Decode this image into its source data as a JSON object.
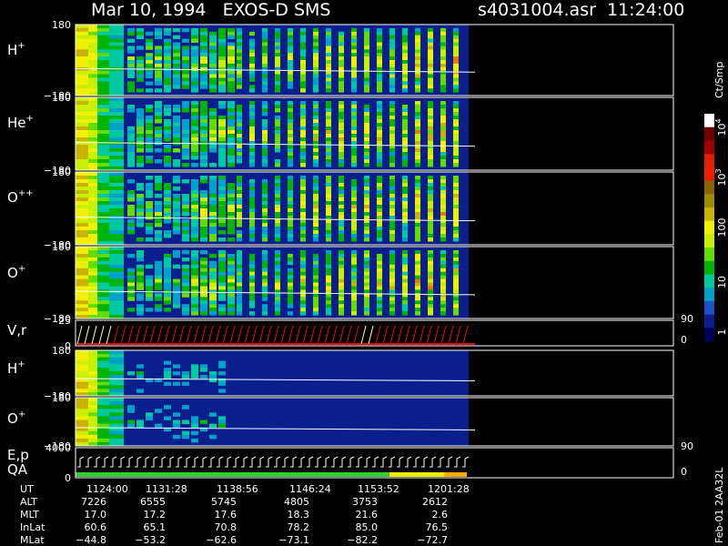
{
  "header": {
    "title": "Mar 10, 1994   EXOS-D SMS",
    "file": "s4031004.asr  11:24:00"
  },
  "panels": [
    {
      "label": "H",
      "sup": "+",
      "ticks": [
        "180",
        "−180"
      ]
    },
    {
      "label": "He",
      "sup": "+",
      "ticks": [
        "180",
        "−180"
      ]
    },
    {
      "label": "O",
      "sup": "++",
      "ticks": [
        "180",
        "−180"
      ]
    },
    {
      "label": "O",
      "sup": "+",
      "ticks": [
        "180",
        "−180"
      ]
    },
    {
      "label": "V,r",
      "ticks": [
        "25",
        "0"
      ],
      "right_ticks": [
        "90",
        "0"
      ]
    },
    {
      "label": "H",
      "sup": "+",
      "ticks": [
        "180",
        "−180"
      ]
    },
    {
      "label": "O",
      "sup": "+",
      "ticks": [
        "180",
        "−180"
      ]
    },
    {
      "label": "E,p",
      "label2": "QA",
      "ticks": [
        "4000",
        "0"
      ],
      "right_ticks": [
        "90",
        "0"
      ]
    }
  ],
  "colorbar": {
    "unit": "Ct/Smp",
    "ticks": [
      {
        "base": "10",
        "exp": "4"
      },
      {
        "base": "10",
        "exp": "3"
      },
      "100",
      "10",
      "1"
    ]
  },
  "footer": {
    "rows": [
      {
        "label": "UT",
        "values": [
          "1124:00",
          "1131:28",
          "1138:56",
          "1146:24",
          "1153:52",
          "1201:28"
        ]
      },
      {
        "label": "ALT",
        "values": [
          "7226",
          "6555",
          "5745",
          "4805",
          "3753",
          "2612"
        ]
      },
      {
        "label": "MLT",
        "values": [
          "17.0",
          "17.2",
          "17.6",
          "18.3",
          "21.6",
          "2.6"
        ]
      },
      {
        "label": "InLat",
        "values": [
          "60.6",
          "65.1",
          "70.8",
          "78.2",
          "85.0",
          "76.5"
        ]
      },
      {
        "label": "MLat",
        "values": [
          "−44.8",
          "−53.2",
          "−62.6",
          "−73.1",
          "−82.2",
          "−72.7"
        ]
      }
    ]
  },
  "stamp": "Feb-01 2AA32L"
}
